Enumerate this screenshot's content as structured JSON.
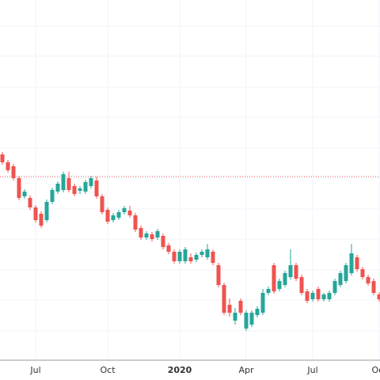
{
  "chart_data": {
    "type": "candlestick",
    "categories": [
      null,
      null,
      null,
      null,
      null,
      null,
      "Jul",
      null,
      null,
      null,
      null,
      null,
      null,
      null,
      null,
      null,
      null,
      null,
      null,
      "Oct",
      null,
      null,
      null,
      null,
      null,
      null,
      null,
      null,
      null,
      null,
      null,
      null,
      "2020",
      null,
      null,
      null,
      null,
      null,
      null,
      null,
      null,
      null,
      null,
      null,
      "Apr",
      null,
      null,
      null,
      null,
      null,
      null,
      null,
      null,
      null,
      null,
      null,
      "Jul",
      null,
      null,
      null,
      null,
      null,
      null,
      null,
      null,
      null,
      null,
      null,
      "Oct"
    ],
    "open": [
      260,
      250,
      245,
      230,
      207,
      205,
      193,
      185,
      177,
      200,
      213,
      215,
      230,
      220,
      214,
      213,
      220,
      227,
      207,
      190,
      177,
      180,
      187,
      189,
      183,
      167,
      155,
      159,
      155,
      157,
      145,
      137,
      125,
      125,
      130,
      127,
      133,
      130,
      137,
      120,
      95,
      70,
      50,
      75,
      40,
      45,
      57,
      60,
      85,
      120,
      90,
      95,
      105,
      120,
      105,
      87,
      77,
      90,
      77,
      77,
      85,
      95,
      100,
      110,
      130,
      115,
      105,
      100,
      83
    ],
    "high": [
      263,
      253,
      248,
      233,
      216,
      208,
      196,
      188,
      203,
      218,
      226,
      238,
      238,
      223,
      220,
      228,
      233,
      232,
      210,
      193,
      186,
      190,
      195,
      195,
      186,
      170,
      163,
      162,
      166,
      160,
      148,
      140,
      140,
      143,
      135,
      136,
      140,
      147,
      140,
      123,
      98,
      78,
      66,
      78,
      63,
      63,
      68,
      90,
      93,
      123,
      103,
      113,
      140,
      123,
      108,
      90,
      88,
      93,
      85,
      88,
      103,
      113,
      123,
      147,
      133,
      118,
      108,
      103,
      86
    ],
    "low": [
      247,
      237,
      227,
      202,
      204,
      190,
      174,
      167,
      174,
      197,
      210,
      212,
      212,
      207,
      210,
      210,
      217,
      204,
      184,
      172,
      174,
      177,
      184,
      180,
      162,
      152,
      152,
      150,
      152,
      140,
      134,
      122,
      122,
      122,
      122,
      124,
      130,
      127,
      120,
      92,
      57,
      55,
      45,
      57,
      37,
      42,
      54,
      57,
      82,
      84,
      87,
      92,
      102,
      100,
      82,
      72,
      74,
      74,
      74,
      74,
      82,
      92,
      97,
      107,
      112,
      102,
      94,
      82,
      74
    ],
    "close": [
      250,
      240,
      230,
      205,
      213,
      193,
      177,
      170,
      200,
      215,
      223,
      235,
      215,
      210,
      217,
      225,
      230,
      207,
      187,
      175,
      183,
      187,
      192,
      183,
      165,
      155,
      160,
      153,
      163,
      143,
      137,
      125,
      137,
      140,
      125,
      133,
      137,
      140,
      123,
      95,
      60,
      60,
      60,
      60,
      60,
      60,
      65,
      85,
      90,
      87,
      100,
      110,
      120,
      103,
      85,
      75,
      85,
      77,
      83,
      85,
      100,
      110,
      120,
      135,
      115,
      105,
      97,
      85,
      77
    ],
    "up_color": "#26a69a",
    "down_color": "#ef5350",
    "ylim": [
      0,
      455
    ],
    "y_grid": [
      422,
      384,
      345,
      307,
      268,
      230,
      191,
      153,
      114,
      76,
      37
    ],
    "reference_line": 232,
    "reference_color": "#ef5350"
  }
}
